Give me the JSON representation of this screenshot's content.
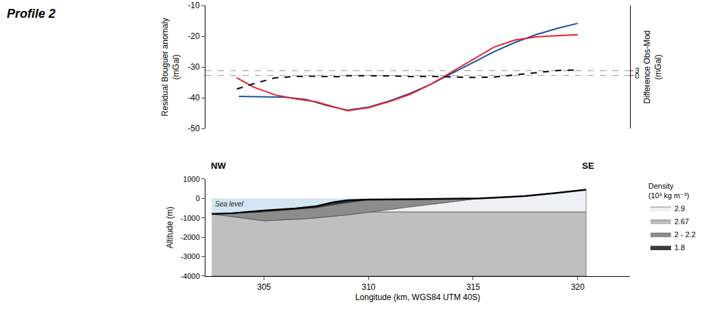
{
  "chart_data": [
    {
      "type": "line",
      "title": "Profile 2",
      "ylabel": "Residual Bouguer anomaly (mGal)",
      "y2label": "Difference Obs-Mod (mGal)",
      "xlim": [
        302.2,
        322.5
      ],
      "ylim": [
        -50,
        -10
      ],
      "yticks": [
        -50,
        -40,
        -30,
        -20,
        -10
      ],
      "y2lim": [
        -30,
        40
      ],
      "y2ticks": [
        0,
        3
      ],
      "grid": "y2",
      "series": [
        {
          "color": "#1550a0",
          "line_style": "solid",
          "x": [
            303.8,
            305,
            306,
            307,
            308,
            309,
            310,
            311,
            312,
            313,
            314,
            315,
            316,
            317,
            318,
            319,
            320
          ],
          "values": [
            -39.5,
            -39.6,
            -39.8,
            -40.5,
            -42.5,
            -44,
            -43,
            -41,
            -38.5,
            -35.5,
            -32,
            -28.5,
            -25,
            -22,
            -19.5,
            -17.5,
            -15.8
          ]
        },
        {
          "color": "#e8202a",
          "line_style": "solid",
          "x": [
            303.7,
            304.5,
            305.5,
            306.5,
            307.5,
            308.5,
            309,
            310,
            311,
            312,
            313,
            314,
            315,
            316,
            317,
            318,
            319,
            320
          ],
          "values": [
            -33.5,
            -36.5,
            -39,
            -40.3,
            -41.3,
            -43.3,
            -44.2,
            -43.2,
            -41.2,
            -38.8,
            -35.5,
            -31.5,
            -27.5,
            -23.5,
            -21.2,
            -20.2,
            -19.8,
            -19.5
          ]
        },
        {
          "color": "#000000",
          "line_style": "dash",
          "axis": "y2",
          "x": [
            303.7,
            304.5,
            305.5,
            306.5,
            307.5,
            308.5,
            309,
            310,
            311,
            312,
            313,
            314,
            315,
            316,
            317,
            318,
            319,
            320
          ],
          "values": [
            -7.5,
            -4.5,
            -1.2,
            -0.3,
            -0.2,
            -0.5,
            0.1,
            0.1,
            0,
            -0.4,
            -0.3,
            -0.6,
            -0.9,
            -0.7,
            0.5,
            1.8,
            3.0,
            3.3
          ]
        }
      ]
    },
    {
      "type": "area",
      "xlabel": "Longitude (km, WGS84 UTM 40S)",
      "ylabel": "Altitude (m)",
      "xlim": [
        302.2,
        322.5
      ],
      "xticks": [
        305,
        310,
        315,
        320
      ],
      "ylim": [
        -4000,
        1000
      ],
      "yticks": [
        -4000,
        -3000,
        -2000,
        -1000,
        0,
        1000
      ],
      "annotations": [
        "NW",
        "SE",
        "Sea level"
      ],
      "legend": "right",
      "legend_title": "Density (10³ kg m⁻³)",
      "series": [
        {
          "color": "#d3e6f3",
          "x": [
            302.5,
            315.3,
            314,
            312,
            310,
            309,
            308.3,
            307.5,
            306.5,
            305,
            303.5,
            302.5
          ],
          "values": [
            0,
            0,
            -20,
            -40,
            -60,
            -100,
            -200,
            -400,
            -520,
            -620,
            -760,
            -800
          ]
        },
        {
          "name": "2.9",
          "color": "#eef0f3",
          "x": [
            310,
            320.4,
            320.4,
            319,
            317.5,
            316,
            315.3,
            313
          ],
          "values": [
            -700,
            -700,
            450,
            280,
            120,
            40,
            0,
            -304
          ]
        },
        {
          "name": "2.67",
          "color": "#bfbfbf",
          "x": [
            302.5,
            320.4,
            320.4,
            310,
            309,
            307,
            305,
            302.5
          ],
          "values": [
            -4000,
            -4000,
            -700,
            -700,
            -850,
            -1050,
            -1150,
            -800
          ]
        },
        {
          "name": "2 - 2.2",
          "color": "#8c8c8c",
          "x": [
            302.5,
            303.5,
            304.5,
            306,
            307.5,
            308.5,
            309.5,
            310,
            312,
            314,
            315.3,
            313,
            310,
            309,
            307,
            305,
            302.5
          ],
          "values": [
            -800,
            -760,
            -730,
            -600,
            -480,
            -300,
            -150,
            -60,
            -40,
            -20,
            0,
            -304,
            -700,
            -850,
            -1050,
            -1150,
            -800
          ]
        },
        {
          "name": "1.8",
          "color": "#3c3c3c",
          "x": [
            303.5,
            305,
            306.5,
            307.5,
            308.3,
            309,
            310,
            309.5,
            308.5,
            307.5,
            306,
            304.5
          ],
          "values": [
            -760,
            -620,
            -520,
            -400,
            -200,
            -100,
            -60,
            -150,
            -300,
            -480,
            -600,
            -730
          ]
        },
        {
          "type": "line",
          "color": "#000000",
          "x": [
            302.5,
            303.5,
            305,
            306.5,
            307.5,
            308.3,
            309,
            310,
            312,
            314,
            315.3,
            316,
            317.5,
            319,
            320.4
          ],
          "values": [
            -800,
            -760,
            -620,
            -520,
            -400,
            -200,
            -100,
            -60,
            -40,
            -20,
            0,
            40,
            120,
            280,
            450
          ]
        }
      ]
    }
  ]
}
